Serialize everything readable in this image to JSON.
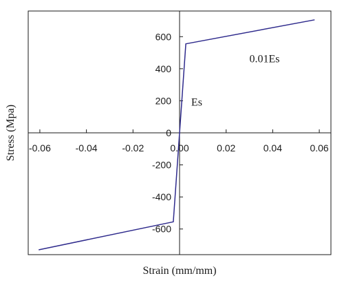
{
  "chart_data": {
    "type": "line",
    "xlabel": "Strain (mm/mm)",
    "ylabel": "Stress (Mpa)",
    "xlim": [
      -0.065,
      0.065
    ],
    "ylim": [
      -760,
      760
    ],
    "xticks": [
      -0.06,
      -0.04,
      -0.02,
      0.0,
      0.02,
      0.04,
      0.06
    ],
    "xtick_labels": [
      "-0.06",
      "-0.04",
      "-0.02",
      "0.00",
      "0.02",
      "0.04",
      "0.06"
    ],
    "yticks": [
      -600,
      -400,
      -200,
      0,
      200,
      400,
      600
    ],
    "ytick_labels": [
      "-600",
      "-400",
      "-200",
      "0",
      "200",
      "400",
      "600"
    ],
    "grid": false,
    "line_color": "#2e2a8c",
    "series": [
      {
        "x": [
          -0.0605,
          -0.0027,
          0.0027,
          0.058
        ],
        "y": [
          -730,
          -555,
          555,
          705
        ]
      }
    ],
    "annotations": [
      {
        "text": "Es",
        "x": 0.005,
        "y": 170
      },
      {
        "text": "0.01Es",
        "x": 0.03,
        "y": 440
      }
    ]
  }
}
